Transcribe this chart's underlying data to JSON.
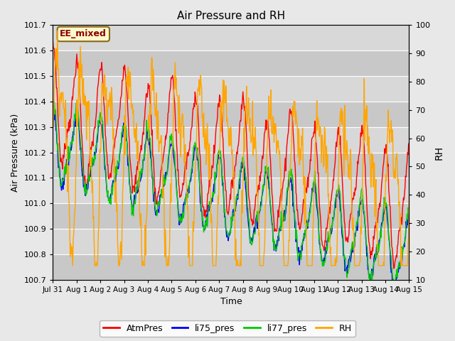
{
  "title": "Air Pressure and RH",
  "xlabel": "Time",
  "ylabel_left": "Air Pressure (kPa)",
  "ylabel_right": "RH",
  "ylim_left": [
    100.7,
    101.7
  ],
  "ylim_right": [
    10,
    100
  ],
  "yticks_left": [
    100.7,
    100.8,
    100.9,
    101.0,
    101.1,
    101.2,
    101.3,
    101.4,
    101.5,
    101.6,
    101.7
  ],
  "yticks_right": [
    10,
    20,
    30,
    40,
    50,
    60,
    70,
    80,
    90,
    100
  ],
  "x_tick_labels": [
    "Jul 31",
    "Aug 1",
    "Aug 2",
    "Aug 3",
    "Aug 4",
    "Aug 5",
    "Aug 6",
    "Aug 7",
    "Aug 8",
    "Aug 9",
    "Aug 10",
    "Aug 11",
    "Aug 12",
    "Aug 13",
    "Aug 14",
    "Aug 15"
  ],
  "annotation_text": "EE_mixed",
  "annotation_color": "#8B0000",
  "annotation_bg": "#FFFACD",
  "annotation_border": "#8B6914",
  "colors": {
    "AtmPres": "#FF0000",
    "li75_pres": "#0000FF",
    "li77_pres": "#00CC00",
    "RH": "#FFA500"
  },
  "fig_bg_color": "#E8E8E8",
  "plot_bg_color": "#DCDCDC",
  "band_color1": "#D8D8D8",
  "band_color2": "#C8C8C8",
  "seed": 7,
  "n_points": 700
}
